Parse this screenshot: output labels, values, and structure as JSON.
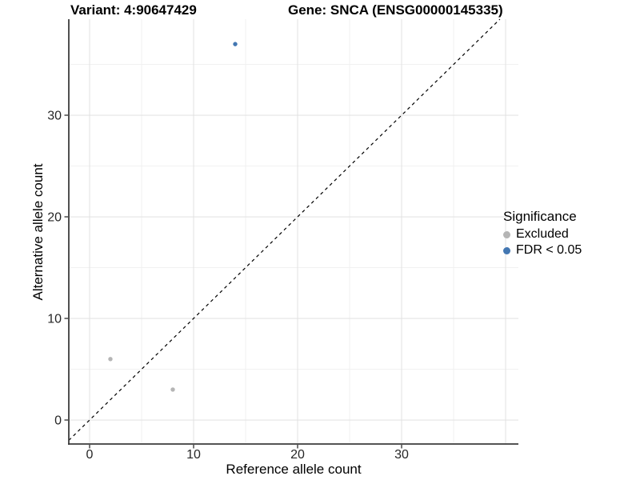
{
  "titles": {
    "variant": "Variant: 4:90647429",
    "gene": "Gene: SNCA (ENSG00000145335)"
  },
  "axes": {
    "x": {
      "label": "Reference allele count"
    },
    "y": {
      "label": "Alternative allele count"
    }
  },
  "legend": {
    "title": "Significance",
    "items": [
      {
        "label": "Excluded",
        "color": "#b5b5b5"
      },
      {
        "label": "FDR < 0.05",
        "color": "#4377b2"
      }
    ]
  },
  "chart_data": {
    "type": "scatter",
    "title": "Variant: 4:90647429 — Gene: SNCA (ENSG00000145335)",
    "xlabel": "Reference allele count",
    "ylabel": "Alternative allele count",
    "xlim": [
      -2,
      41.23
    ],
    "ylim": [
      -2.36,
      39.45
    ],
    "x_ticks": [
      0,
      10,
      20,
      30
    ],
    "y_ticks": [
      0,
      10,
      20,
      30
    ],
    "minor_gridlines_x": [
      5,
      15,
      25,
      35
    ],
    "minor_gridlines_y": [
      5,
      15,
      25,
      35
    ],
    "major_gridlines_x": [
      0,
      10,
      20,
      30,
      40
    ],
    "major_gridlines_y": [
      0,
      10,
      20,
      30
    ],
    "grid": true,
    "legend_position": "right",
    "series": [
      {
        "name": "Excluded",
        "color": "#b5b5b5",
        "points": [
          {
            "x": 2,
            "y": 6
          },
          {
            "x": 8,
            "y": 3
          }
        ]
      },
      {
        "name": "FDR < 0.05",
        "color": "#4377b2",
        "points": [
          {
            "x": 14,
            "y": 37
          }
        ]
      }
    ],
    "reference_line": {
      "type": "identity y=x",
      "style": "dashed",
      "color": "#000000"
    }
  },
  "colors": {
    "grid_major": "#e4e4e4",
    "grid_minor": "#efefef",
    "axis_line": "#3c3c3c",
    "tick_label": "#262626",
    "background": "#ffffff"
  }
}
